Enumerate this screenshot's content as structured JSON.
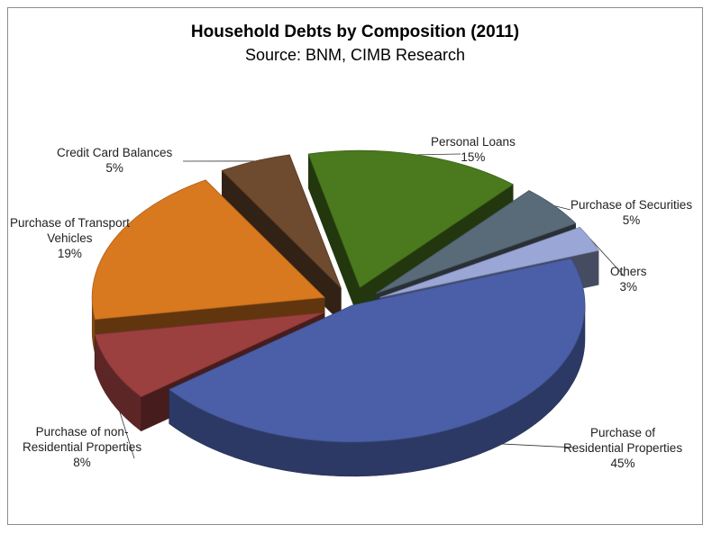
{
  "chart_data": {
    "type": "pie",
    "title": "Household Debts by Composition (2011)",
    "subtitle": "Source: BNM, CIMB Research",
    "slices": [
      {
        "name": "Purchase of Residential Properties",
        "value": 45,
        "label": "45%",
        "color": "#4a5fa8",
        "exploded": false
      },
      {
        "name": "Purchase of non-Residential Properties",
        "value": 8,
        "label": "8%",
        "color": "#9b3f3f",
        "exploded": true
      },
      {
        "name": "Purchase of Transport Vehicles",
        "value": 19,
        "label": "19%",
        "color": "#d8781f",
        "exploded": true
      },
      {
        "name": "Credit Card Balances",
        "value": 5,
        "label": "5%",
        "color": "#6e4a2e",
        "exploded": true
      },
      {
        "name": "Personal Loans",
        "value": 15,
        "label": "15%",
        "color": "#4b7a1e",
        "exploded": true
      },
      {
        "name": "Purchase of Securities",
        "value": 5,
        "label": "5%",
        "color": "#596a78",
        "exploded": true
      },
      {
        "name": "Others",
        "value": 3,
        "label": "3%",
        "color": "#9aa6d6",
        "exploded": true
      }
    ]
  },
  "labels": {
    "residential": {
      "line1": "Purchase of",
      "line2": "Residential Properties",
      "pct": "45%"
    },
    "nonresidential": {
      "line1": "Purchase of non-",
      "line2": "Residential Properties",
      "pct": "8%"
    },
    "transport": {
      "line1": "Purchase of Transport",
      "line2": "Vehicles",
      "pct": "19%"
    },
    "creditcard": {
      "line1": "Credit Card Balances",
      "pct": "5%"
    },
    "personal": {
      "line1": "Personal Loans",
      "pct": "15%"
    },
    "securities": {
      "line1": "Purchase of Securities",
      "pct": "5%"
    },
    "others": {
      "line1": "Others",
      "pct": "3%"
    }
  }
}
